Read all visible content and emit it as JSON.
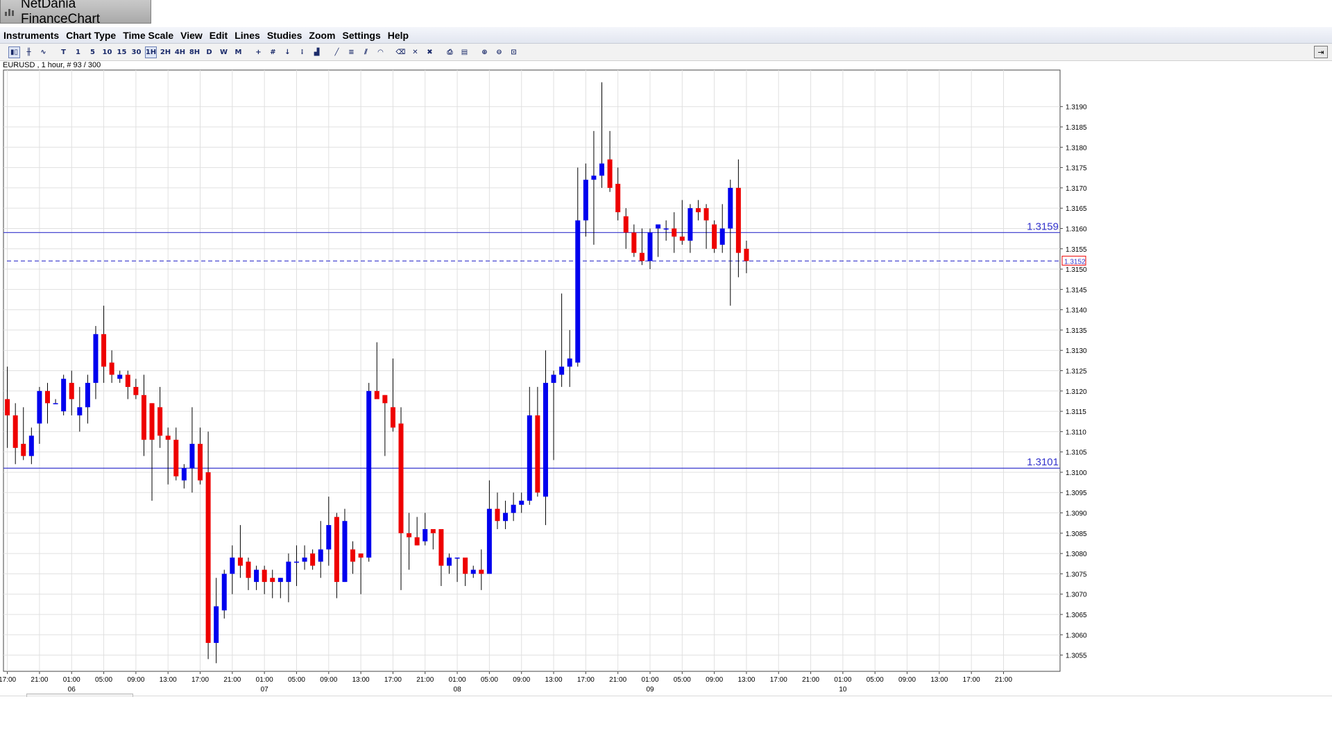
{
  "window": {
    "title": "NetDania FinanceChart"
  },
  "menu": [
    "Instruments",
    "Chart Type",
    "Time Scale",
    "View",
    "Edit",
    "Lines",
    "Studies",
    "Zoom",
    "Settings",
    "Help"
  ],
  "toolbar": {
    "buttons": [
      {
        "name": "candlestick-chart-icon",
        "glyph": "▮▯",
        "sel": true
      },
      {
        "name": "ohlc-chart-icon",
        "glyph": "╫"
      },
      {
        "name": "line-chart-icon",
        "glyph": "∿"
      },
      {
        "sep": true
      },
      {
        "name": "tick-interval-button",
        "glyph": "T"
      },
      {
        "name": "1min-interval-button",
        "glyph": "1"
      },
      {
        "name": "5min-interval-button",
        "glyph": "5"
      },
      {
        "name": "10min-interval-button",
        "glyph": "10"
      },
      {
        "name": "15min-interval-button",
        "glyph": "15"
      },
      {
        "name": "30min-interval-button",
        "glyph": "30"
      },
      {
        "name": "1h-interval-button",
        "glyph": "1H",
        "sel": true
      },
      {
        "name": "2h-interval-button",
        "glyph": "2H"
      },
      {
        "name": "4h-interval-button",
        "glyph": "4H"
      },
      {
        "name": "8h-interval-button",
        "glyph": "8H"
      },
      {
        "name": "daily-interval-button",
        "glyph": "D"
      },
      {
        "name": "weekly-interval-button",
        "glyph": "W"
      },
      {
        "name": "monthly-interval-button",
        "glyph": "M"
      },
      {
        "sep": true
      },
      {
        "name": "crosshair-icon",
        "glyph": "+"
      },
      {
        "name": "grid-icon",
        "glyph": "#"
      },
      {
        "name": "cursor-icon",
        "glyph": "↓"
      },
      {
        "name": "studies-icon",
        "glyph": "⁞"
      },
      {
        "name": "volume-icon",
        "glyph": "▟"
      },
      {
        "sep": true
      },
      {
        "name": "trendline-icon",
        "glyph": "╱"
      },
      {
        "name": "fibonacci-icon",
        "glyph": "≡"
      },
      {
        "name": "channel-icon",
        "glyph": "⫽"
      },
      {
        "name": "arc-icon",
        "glyph": "◠"
      },
      {
        "sep": true
      },
      {
        "name": "delete-line-icon",
        "glyph": "⌫"
      },
      {
        "name": "delete-icon",
        "glyph": "✕"
      },
      {
        "name": "delete-all-icon",
        "glyph": "✖"
      },
      {
        "sep": true
      },
      {
        "name": "print-icon",
        "glyph": "⎙"
      },
      {
        "name": "print-preview-icon",
        "glyph": "▤"
      },
      {
        "sep": true
      },
      {
        "name": "zoom-in-icon",
        "glyph": "⊕"
      },
      {
        "name": "zoom-out-icon",
        "glyph": "⊖"
      },
      {
        "name": "zoom-reset-icon",
        "glyph": "⊡"
      }
    ]
  },
  "symbol_info": "EURUSD , 1 hour, # 93 / 300",
  "colors": {
    "up": "#0000ee",
    "down": "#ee0000",
    "grid": "#e0e0e0",
    "hline": "#3333cc",
    "wick": "#000000"
  },
  "chart_data": {
    "type": "candlestick",
    "instrument": "EURUSD",
    "interval": "1 hour",
    "ylim": [
      1.3051,
      1.3199
    ],
    "y_ticks": [
      "1.3055",
      "1.3060",
      "1.3065",
      "1.3070",
      "1.3075",
      "1.3080",
      "1.3085",
      "1.3090",
      "1.3095",
      "1.3100",
      "1.3105",
      "1.3110",
      "1.3115",
      "1.3120",
      "1.3125",
      "1.3130",
      "1.3135",
      "1.3140",
      "1.3145",
      "1.3150",
      "1.3155",
      "1.3160",
      "1.3165",
      "1.3170",
      "1.3175",
      "1.3180",
      "1.3185",
      "1.3190"
    ],
    "x_ticks": [
      {
        "i": 0,
        "t": "17:00"
      },
      {
        "i": 4,
        "t": "21:00"
      },
      {
        "i": 8,
        "t": "01:00",
        "d": "06"
      },
      {
        "i": 12,
        "t": "05:00"
      },
      {
        "i": 16,
        "t": "09:00"
      },
      {
        "i": 20,
        "t": "13:00"
      },
      {
        "i": 24,
        "t": "17:00"
      },
      {
        "i": 28,
        "t": "21:00"
      },
      {
        "i": 32,
        "t": "01:00",
        "d": "07"
      },
      {
        "i": 36,
        "t": "05:00"
      },
      {
        "i": 40,
        "t": "09:00"
      },
      {
        "i": 44,
        "t": "13:00"
      },
      {
        "i": 48,
        "t": "17:00"
      },
      {
        "i": 52,
        "t": "21:00"
      },
      {
        "i": 56,
        "t": "01:00",
        "d": "08"
      },
      {
        "i": 60,
        "t": "05:00"
      },
      {
        "i": 64,
        "t": "09:00"
      },
      {
        "i": 68,
        "t": "13:00"
      },
      {
        "i": 72,
        "t": "17:00"
      },
      {
        "i": 76,
        "t": "21:00"
      },
      {
        "i": 80,
        "t": "01:00",
        "d": "09"
      },
      {
        "i": 84,
        "t": "05:00"
      },
      {
        "i": 88,
        "t": "09:00"
      },
      {
        "i": 92,
        "t": "13:00"
      },
      {
        "i": 96,
        "t": "17:00"
      },
      {
        "i": 100,
        "t": "21:00"
      },
      {
        "i": 104,
        "t": "01:00",
        "d": "10"
      },
      {
        "i": 108,
        "t": "05:00"
      },
      {
        "i": 112,
        "t": "09:00"
      },
      {
        "i": 116,
        "t": "13:00"
      },
      {
        "i": 120,
        "t": "17:00"
      },
      {
        "i": 124,
        "t": "21:00"
      }
    ],
    "candles": [
      {
        "o": 1.3118,
        "h": 1.3126,
        "l": 1.3106,
        "c": 1.3114
      },
      {
        "o": 1.3114,
        "h": 1.3117,
        "l": 1.3102,
        "c": 1.3106
      },
      {
        "o": 1.3107,
        "h": 1.3116,
        "l": 1.3103,
        "c": 1.3104
      },
      {
        "o": 1.3104,
        "h": 1.3111,
        "l": 1.3102,
        "c": 1.3109
      },
      {
        "o": 1.3112,
        "h": 1.3121,
        "l": 1.3107,
        "c": 1.312
      },
      {
        "o": 1.312,
        "h": 1.3122,
        "l": 1.3112,
        "c": 1.3117
      },
      {
        "o": 1.3117,
        "h": 1.3118,
        "l": 1.3117,
        "c": 1.3117
      },
      {
        "o": 1.3115,
        "h": 1.3124,
        "l": 1.3114,
        "c": 1.3123
      },
      {
        "o": 1.3122,
        "h": 1.3125,
        "l": 1.3114,
        "c": 1.3118
      },
      {
        "o": 1.3114,
        "h": 1.3121,
        "l": 1.311,
        "c": 1.3116
      },
      {
        "o": 1.3116,
        "h": 1.3124,
        "l": 1.3112,
        "c": 1.3122
      },
      {
        "o": 1.3122,
        "h": 1.3136,
        "l": 1.3118,
        "c": 1.3134
      },
      {
        "o": 1.3134,
        "h": 1.3141,
        "l": 1.3122,
        "c": 1.3126
      },
      {
        "o": 1.3127,
        "h": 1.313,
        "l": 1.3122,
        "c": 1.3124
      },
      {
        "o": 1.3123,
        "h": 1.3125,
        "l": 1.3122,
        "c": 1.3124
      },
      {
        "o": 1.3124,
        "h": 1.3125,
        "l": 1.3118,
        "c": 1.3121
      },
      {
        "o": 1.3121,
        "h": 1.3123,
        "l": 1.3118,
        "c": 1.3119
      },
      {
        "o": 1.3119,
        "h": 1.3124,
        "l": 1.3104,
        "c": 1.3108
      },
      {
        "o": 1.3117,
        "h": 1.3117,
        "l": 1.3093,
        "c": 1.3108
      },
      {
        "o": 1.3116,
        "h": 1.3121,
        "l": 1.3106,
        "c": 1.3109
      },
      {
        "o": 1.3109,
        "h": 1.3111,
        "l": 1.3097,
        "c": 1.3108
      },
      {
        "o": 1.3108,
        "h": 1.3111,
        "l": 1.3098,
        "c": 1.3099
      },
      {
        "o": 1.3098,
        "h": 1.3102,
        "l": 1.3096,
        "c": 1.3101
      },
      {
        "o": 1.3101,
        "h": 1.3116,
        "l": 1.3095,
        "c": 1.3107
      },
      {
        "o": 1.3107,
        "h": 1.3111,
        "l": 1.3097,
        "c": 1.3098
      },
      {
        "o": 1.31,
        "h": 1.311,
        "l": 1.3054,
        "c": 1.3058
      },
      {
        "o": 1.3058,
        "h": 1.3074,
        "l": 1.3053,
        "c": 1.3067
      },
      {
        "o": 1.3066,
        "h": 1.3076,
        "l": 1.3064,
        "c": 1.3075
      },
      {
        "o": 1.3075,
        "h": 1.3082,
        "l": 1.307,
        "c": 1.3079
      },
      {
        "o": 1.3079,
        "h": 1.3087,
        "l": 1.3074,
        "c": 1.3077
      },
      {
        "o": 1.3078,
        "h": 1.3079,
        "l": 1.3071,
        "c": 1.3074
      },
      {
        "o": 1.3073,
        "h": 1.3077,
        "l": 1.3071,
        "c": 1.3076
      },
      {
        "o": 1.3076,
        "h": 1.3077,
        "l": 1.307,
        "c": 1.3073
      },
      {
        "o": 1.3074,
        "h": 1.3076,
        "l": 1.3069,
        "c": 1.3073
      },
      {
        "o": 1.3073,
        "h": 1.3074,
        "l": 1.3069,
        "c": 1.3074
      },
      {
        "o": 1.3073,
        "h": 1.308,
        "l": 1.3068,
        "c": 1.3078
      },
      {
        "o": 1.3078,
        "h": 1.3082,
        "l": 1.3072,
        "c": 1.3078
      },
      {
        "o": 1.3078,
        "h": 1.3082,
        "l": 1.3076,
        "c": 1.3079
      },
      {
        "o": 1.308,
        "h": 1.3081,
        "l": 1.3076,
        "c": 1.3077
      },
      {
        "o": 1.3078,
        "h": 1.3088,
        "l": 1.3074,
        "c": 1.3081
      },
      {
        "o": 1.3081,
        "h": 1.3094,
        "l": 1.3077,
        "c": 1.3087
      },
      {
        "o": 1.3089,
        "h": 1.309,
        "l": 1.3069,
        "c": 1.3073
      },
      {
        "o": 1.3073,
        "h": 1.3091,
        "l": 1.3073,
        "c": 1.3088
      },
      {
        "o": 1.3081,
        "h": 1.3083,
        "l": 1.3075,
        "c": 1.3078
      },
      {
        "o": 1.308,
        "h": 1.308,
        "l": 1.307,
        "c": 1.3079
      },
      {
        "o": 1.3079,
        "h": 1.3122,
        "l": 1.3078,
        "c": 1.312
      },
      {
        "o": 1.312,
        "h": 1.3132,
        "l": 1.3118,
        "c": 1.3118
      },
      {
        "o": 1.3119,
        "h": 1.3119,
        "l": 1.3104,
        "c": 1.3117
      },
      {
        "o": 1.3116,
        "h": 1.3128,
        "l": 1.311,
        "c": 1.3111
      },
      {
        "o": 1.3112,
        "h": 1.3116,
        "l": 1.3071,
        "c": 1.3085
      },
      {
        "o": 1.3085,
        "h": 1.309,
        "l": 1.3076,
        "c": 1.3084
      },
      {
        "o": 1.3084,
        "h": 1.3089,
        "l": 1.3082,
        "c": 1.3082
      },
      {
        "o": 1.3083,
        "h": 1.309,
        "l": 1.3082,
        "c": 1.3086
      },
      {
        "o": 1.3086,
        "h": 1.3085,
        "l": 1.3081,
        "c": 1.3085
      },
      {
        "o": 1.3086,
        "h": 1.3086,
        "l": 1.3072,
        "c": 1.3077
      },
      {
        "o": 1.3077,
        "h": 1.308,
        "l": 1.3075,
        "c": 1.3079
      },
      {
        "o": 1.3079,
        "h": 1.3079,
        "l": 1.3073,
        "c": 1.3079
      },
      {
        "o": 1.3079,
        "h": 1.3078,
        "l": 1.3072,
        "c": 1.3075
      },
      {
        "o": 1.3075,
        "h": 1.3077,
        "l": 1.3074,
        "c": 1.3076
      },
      {
        "o": 1.3076,
        "h": 1.3081,
        "l": 1.3071,
        "c": 1.3075
      },
      {
        "o": 1.3075,
        "h": 1.3098,
        "l": 1.3075,
        "c": 1.3091
      },
      {
        "o": 1.3091,
        "h": 1.3095,
        "l": 1.3086,
        "c": 1.3088
      },
      {
        "o": 1.3088,
        "h": 1.3093,
        "l": 1.3086,
        "c": 1.309
      },
      {
        "o": 1.309,
        "h": 1.3095,
        "l": 1.3088,
        "c": 1.3092
      },
      {
        "o": 1.3092,
        "h": 1.3095,
        "l": 1.309,
        "c": 1.3093
      },
      {
        "o": 1.3093,
        "h": 1.3121,
        "l": 1.3092,
        "c": 1.3114
      },
      {
        "o": 1.3114,
        "h": 1.3121,
        "l": 1.3094,
        "c": 1.3095
      },
      {
        "o": 1.3094,
        "h": 1.313,
        "l": 1.3087,
        "c": 1.3122
      },
      {
        "o": 1.3122,
        "h": 1.3125,
        "l": 1.3103,
        "c": 1.3124
      },
      {
        "o": 1.3124,
        "h": 1.3144,
        "l": 1.3121,
        "c": 1.3126
      },
      {
        "o": 1.3126,
        "h": 1.3135,
        "l": 1.3121,
        "c": 1.3128
      },
      {
        "o": 1.3127,
        "h": 1.3175,
        "l": 1.3126,
        "c": 1.3162
      },
      {
        "o": 1.3162,
        "h": 1.3176,
        "l": 1.3158,
        "c": 1.3172
      },
      {
        "o": 1.3172,
        "h": 1.3184,
        "l": 1.3156,
        "c": 1.3173
      },
      {
        "o": 1.3173,
        "h": 1.3196,
        "l": 1.317,
        "c": 1.3176
      },
      {
        "o": 1.3177,
        "h": 1.3184,
        "l": 1.3169,
        "c": 1.317
      },
      {
        "o": 1.3171,
        "h": 1.3175,
        "l": 1.3162,
        "c": 1.3164
      },
      {
        "o": 1.3163,
        "h": 1.3165,
        "l": 1.3155,
        "c": 1.3159
      },
      {
        "o": 1.3159,
        "h": 1.3161,
        "l": 1.3153,
        "c": 1.3154
      },
      {
        "o": 1.3154,
        "h": 1.316,
        "l": 1.3151,
        "c": 1.3152
      },
      {
        "o": 1.3152,
        "h": 1.316,
        "l": 1.315,
        "c": 1.3159
      },
      {
        "o": 1.316,
        "h": 1.3161,
        "l": 1.3153,
        "c": 1.3161
      },
      {
        "o": 1.316,
        "h": 1.3162,
        "l": 1.3157,
        "c": 1.316
      },
      {
        "o": 1.316,
        "h": 1.3164,
        "l": 1.3154,
        "c": 1.3158
      },
      {
        "o": 1.3158,
        "h": 1.3167,
        "l": 1.3156,
        "c": 1.3157
      },
      {
        "o": 1.3157,
        "h": 1.3166,
        "l": 1.3154,
        "c": 1.3165
      },
      {
        "o": 1.3165,
        "h": 1.3167,
        "l": 1.3162,
        "c": 1.3164
      },
      {
        "o": 1.3165,
        "h": 1.3166,
        "l": 1.3155,
        "c": 1.3162
      },
      {
        "o": 1.3161,
        "h": 1.3162,
        "l": 1.3154,
        "c": 1.3155
      },
      {
        "o": 1.3156,
        "h": 1.3166,
        "l": 1.3154,
        "c": 1.316
      },
      {
        "o": 1.316,
        "h": 1.3172,
        "l": 1.3141,
        "c": 1.317
      },
      {
        "o": 1.317,
        "h": 1.3177,
        "l": 1.3148,
        "c": 1.3154
      },
      {
        "o": 1.3155,
        "h": 1.3157,
        "l": 1.3149,
        "c": 1.3152
      }
    ],
    "hlines": [
      {
        "value": 1.3159,
        "label": "1.3159",
        "style": "solid"
      },
      {
        "value": 1.3101,
        "label": "1.3101",
        "style": "solid"
      },
      {
        "value": 1.3152,
        "label": "1.3152",
        "style": "dashed",
        "current": true
      }
    ]
  }
}
